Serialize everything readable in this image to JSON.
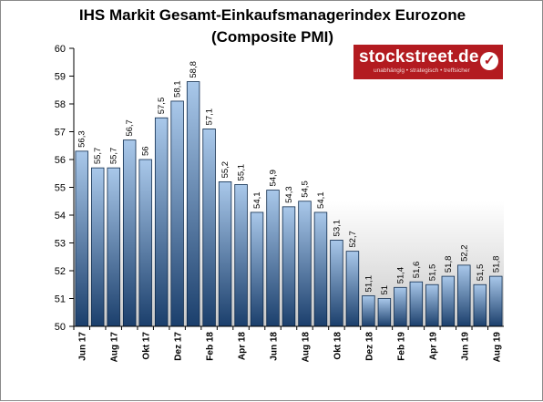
{
  "title": "IHS Markit Gesamt-Einkaufsmanagerindex Eurozone",
  "subtitle": "(Composite PMI)",
  "logo": {
    "text": "stockstreet.de",
    "tagline": "unabhängig • strategisch • treffsicher",
    "check_glyph": "✓",
    "color": "#b31b20"
  },
  "colors": {
    "bar_top": "#a9c8ea",
    "bar_bottom": "#1b3f6c",
    "background_top": "#ffffff",
    "background_bottom": "#c9c9c9"
  },
  "chart_data": {
    "type": "bar",
    "title": "IHS Markit Gesamt-Einkaufsmanagerindex Eurozone",
    "subtitle": "(Composite PMI)",
    "ylim": [
      50,
      60
    ],
    "yticks": [
      50,
      51,
      52,
      53,
      54,
      55,
      56,
      57,
      58,
      59,
      60
    ],
    "categories": [
      "Jun 17",
      "Jul 17",
      "Aug 17",
      "Sep 17",
      "Okt 17",
      "Nov 17",
      "Dez 17",
      "Jan 18",
      "Feb 18",
      "Mär 18",
      "Apr 18",
      "Mai 18",
      "Jun 18",
      "Jul 18",
      "Aug 18",
      "Sep 18",
      "Okt 18",
      "Nov 18",
      "Dez 18",
      "Jan 19",
      "Feb 19",
      "Mär 19",
      "Apr 19",
      "Mai 19",
      "Jun 19",
      "Jul 19",
      "Aug 19"
    ],
    "xtick_labels": [
      "Jun 17",
      "",
      "Aug 17",
      "",
      "Okt 17",
      "",
      "Dez 17",
      "",
      "Feb 18",
      "",
      "Apr 18",
      "",
      "Jun 18",
      "",
      "Aug 18",
      "",
      "Okt 18",
      "",
      "Dez 18",
      "",
      "Feb 19",
      "",
      "Apr 19",
      "",
      "Jun 19",
      "",
      "Aug 19"
    ],
    "values": [
      56.3,
      55.7,
      55.7,
      56.7,
      56,
      57.5,
      58.1,
      58.8,
      57.1,
      55.2,
      55.1,
      54.1,
      54.9,
      54.3,
      54.5,
      54.1,
      53.1,
      52.7,
      51.1,
      51,
      51.4,
      51.6,
      51.5,
      51.8,
      52.2,
      51.5,
      51.8
    ],
    "value_labels": [
      "56,3",
      "55,7",
      "55,7",
      "56,7",
      "56",
      "57,5",
      "58,1",
      "58,8",
      "57,1",
      "55,2",
      "55,1",
      "54,1",
      "54,9",
      "54,3",
      "54,5",
      "54,1",
      "53,1",
      "52,7",
      "51,1",
      "51",
      "51,4",
      "51,6",
      "51,5",
      "51,8",
      "52,2",
      "51,5",
      "51,8"
    ],
    "grid": false
  }
}
